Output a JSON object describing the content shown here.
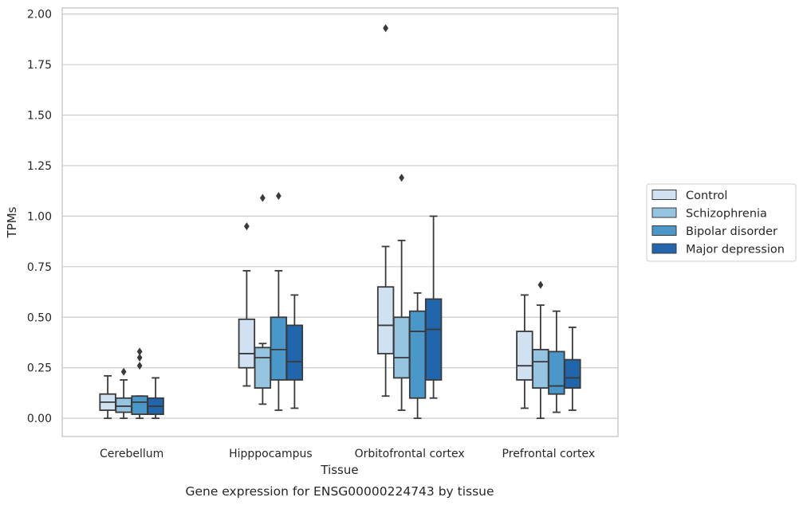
{
  "chart_data": {
    "type": "box",
    "caption": "Gene expression for ENSG00000224743 by tissue",
    "xlabel": "Tissue",
    "ylabel": "TPMs",
    "ylim": [
      -0.09,
      2.03
    ],
    "yticks": [
      "0.00",
      "0.25",
      "0.50",
      "0.75",
      "1.00",
      "1.25",
      "1.50",
      "1.75",
      "2.00"
    ],
    "ytick_values": [
      0,
      0.25,
      0.5,
      0.75,
      1.0,
      1.25,
      1.5,
      1.75,
      2.0
    ],
    "grid": "horizontal",
    "legend_position": "right",
    "categories": [
      "Cerebellum",
      "Hipppocampus",
      "Orbitofrontal cortex",
      "Prefrontal cortex"
    ],
    "series": [
      {
        "name": "Control",
        "color": "#d0e1f2",
        "boxes": [
          {
            "whislo": 0.0,
            "q1": 0.04,
            "med": 0.08,
            "q3": 0.12,
            "whishi": 0.21,
            "fliers": []
          },
          {
            "whislo": 0.16,
            "q1": 0.25,
            "med": 0.32,
            "q3": 0.49,
            "whishi": 0.73,
            "fliers": [
              0.95
            ]
          },
          {
            "whislo": 0.11,
            "q1": 0.32,
            "med": 0.46,
            "q3": 0.65,
            "whishi": 0.85,
            "fliers": [
              1.93
            ]
          },
          {
            "whislo": 0.05,
            "q1": 0.19,
            "med": 0.26,
            "q3": 0.43,
            "whishi": 0.61,
            "fliers": []
          }
        ]
      },
      {
        "name": "Schizophrenia",
        "color": "#94c4df",
        "boxes": [
          {
            "whislo": 0.0,
            "q1": 0.03,
            "med": 0.06,
            "q3": 0.1,
            "whishi": 0.19,
            "fliers": [
              0.23
            ]
          },
          {
            "whislo": 0.07,
            "q1": 0.15,
            "med": 0.3,
            "q3": 0.35,
            "whishi": 0.37,
            "fliers": [
              1.09
            ]
          },
          {
            "whislo": 0.04,
            "q1": 0.2,
            "med": 0.3,
            "q3": 0.5,
            "whishi": 0.88,
            "fliers": [
              1.19
            ]
          },
          {
            "whislo": 0.0,
            "q1": 0.15,
            "med": 0.28,
            "q3": 0.34,
            "whishi": 0.56,
            "fliers": [
              0.66
            ]
          }
        ]
      },
      {
        "name": "Bipolar disorder",
        "color": "#4a98c9",
        "boxes": [
          {
            "whislo": 0.0,
            "q1": 0.02,
            "med": 0.08,
            "q3": 0.11,
            "whishi": 0.11,
            "fliers": [
              0.26,
              0.3,
              0.33
            ]
          },
          {
            "whislo": 0.04,
            "q1": 0.19,
            "med": 0.34,
            "q3": 0.5,
            "whishi": 0.73,
            "fliers": [
              1.1
            ]
          },
          {
            "whislo": 0.0,
            "q1": 0.1,
            "med": 0.43,
            "q3": 0.53,
            "whishi": 0.62,
            "fliers": []
          },
          {
            "whislo": 0.03,
            "q1": 0.12,
            "med": 0.16,
            "q3": 0.33,
            "whishi": 0.53,
            "fliers": []
          }
        ]
      },
      {
        "name": "Major depression",
        "color": "#2166ac",
        "boxes": [
          {
            "whislo": 0.0,
            "q1": 0.02,
            "med": 0.06,
            "q3": 0.1,
            "whishi": 0.2,
            "fliers": []
          },
          {
            "whislo": 0.05,
            "q1": 0.19,
            "med": 0.28,
            "q3": 0.46,
            "whishi": 0.61,
            "fliers": []
          },
          {
            "whislo": 0.1,
            "q1": 0.19,
            "med": 0.44,
            "q3": 0.59,
            "whishi": 1.0,
            "fliers": []
          },
          {
            "whislo": 0.04,
            "q1": 0.15,
            "med": 0.2,
            "q3": 0.29,
            "whishi": 0.45,
            "fliers": []
          }
        ]
      }
    ]
  }
}
